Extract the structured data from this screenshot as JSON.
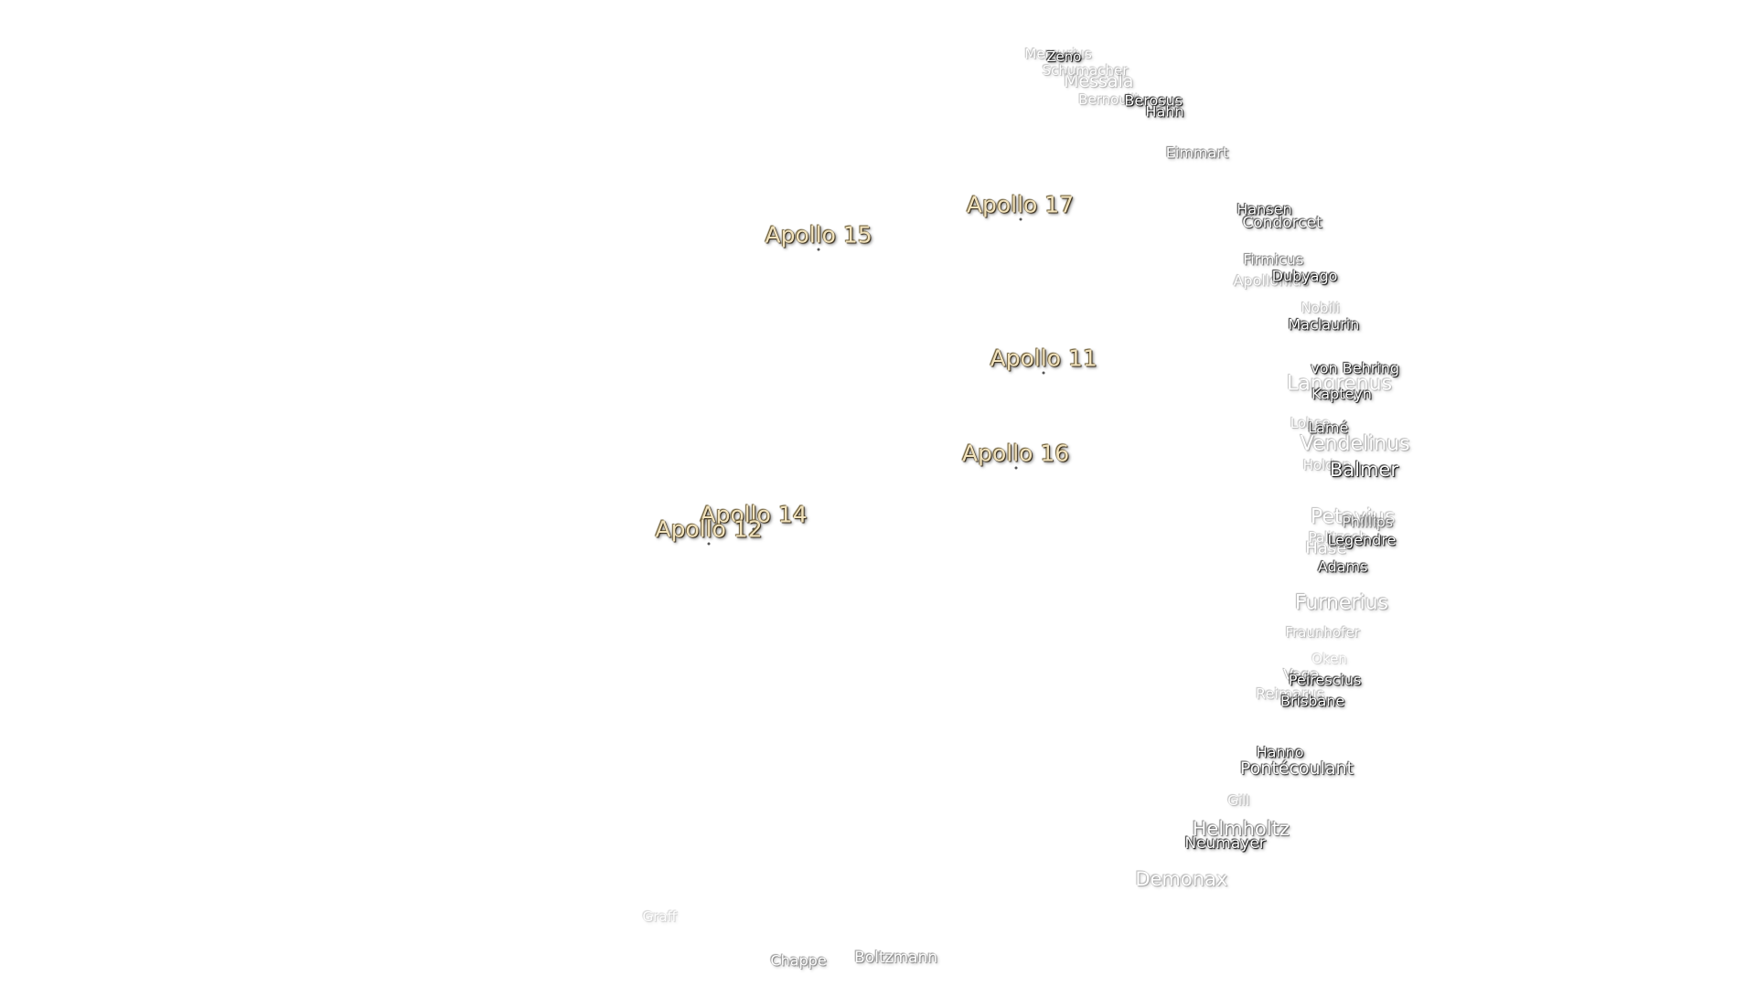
{
  "apollo_sites": [
    {
      "label": "Apollo 17"
    },
    {
      "label": "Apollo 15"
    },
    {
      "label": "Apollo 11"
    },
    {
      "label": "Apollo 16"
    },
    {
      "label": "Apollo 14"
    },
    {
      "label": "Apollo 12"
    }
  ],
  "craters": [
    {
      "label": "Mercurius"
    },
    {
      "label": "Zeno"
    },
    {
      "label": "Schumacher"
    },
    {
      "label": "Messala"
    },
    {
      "label": "Bernoulli"
    },
    {
      "label": "Berosus"
    },
    {
      "label": "Hahn"
    },
    {
      "label": "Eimmart"
    },
    {
      "label": "Hansen"
    },
    {
      "label": "Condorcet"
    },
    {
      "label": "Firmicus"
    },
    {
      "label": "Apollonius"
    },
    {
      "label": "Dubyago"
    },
    {
      "label": "Nobili"
    },
    {
      "label": "Maclaurin"
    },
    {
      "label": "von Behring"
    },
    {
      "label": "Langrenus"
    },
    {
      "label": "Kapteyn"
    },
    {
      "label": "Lohse"
    },
    {
      "label": "Lamé"
    },
    {
      "label": "Vendelinus"
    },
    {
      "label": "Holden"
    },
    {
      "label": "Balmer"
    },
    {
      "label": "Petavius"
    },
    {
      "label": "Phillips"
    },
    {
      "label": "Palitzsch"
    },
    {
      "label": "Legendre"
    },
    {
      "label": "Hase"
    },
    {
      "label": "Adams"
    },
    {
      "label": "Furnerius"
    },
    {
      "label": "Fraunhofer"
    },
    {
      "label": "Oken"
    },
    {
      "label": "Vega"
    },
    {
      "label": "Peirescius"
    },
    {
      "label": "Reimarus"
    },
    {
      "label": "Brisbane"
    },
    {
      "label": "Hanno"
    },
    {
      "label": "Pontécoulant"
    },
    {
      "label": "Gill"
    },
    {
      "label": "Helmholtz"
    },
    {
      "label": "Neumayer"
    },
    {
      "label": "Demonax"
    },
    {
      "label": "Graff"
    },
    {
      "label": "Chappe"
    },
    {
      "label": "Boltzmann"
    }
  ]
}
